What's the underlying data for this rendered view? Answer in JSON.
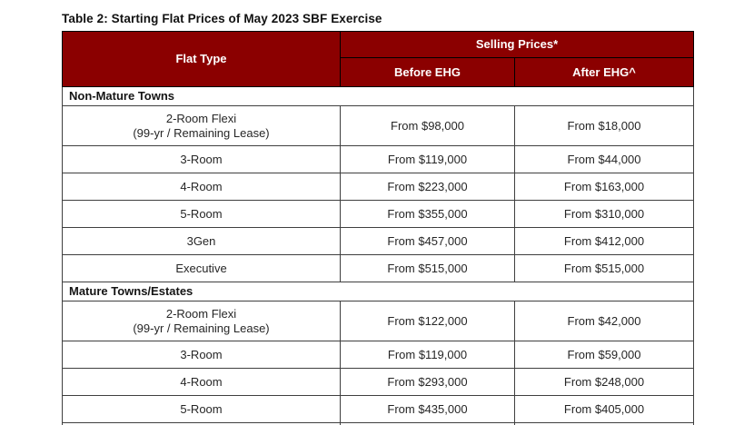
{
  "page_title": "Table 2: Starting Flat Prices of May 2023 SBF Exercise",
  "colors": {
    "header_bg": "#8B0000",
    "header_text": "#FFFFFF",
    "border": "#3F3F3F",
    "body_text": "#262626"
  },
  "table": {
    "header": {
      "flat_type": "Flat Type",
      "selling_prices": "Selling Prices*",
      "before_ehg": "Before EHG",
      "after_ehg": "After EHG^"
    },
    "sections": [
      {
        "name": "Non-Mature Towns",
        "rows": [
          {
            "flat_type": "2-Room Flexi",
            "flat_type_sub": "(99-yr / Remaining Lease)",
            "before": "From $98,000",
            "after": "From $18,000"
          },
          {
            "flat_type": "3-Room",
            "before": "From $119,000",
            "after": "From $44,000"
          },
          {
            "flat_type": "4-Room",
            "before": "From $223,000",
            "after": "From $163,000"
          },
          {
            "flat_type": "5-Room",
            "before": "From $355,000",
            "after": "From $310,000"
          },
          {
            "flat_type": "3Gen",
            "before": "From $457,000",
            "after": "From $412,000"
          },
          {
            "flat_type": "Executive",
            "before": "From $515,000",
            "after": "From $515,000"
          }
        ]
      },
      {
        "name": "Mature Towns/Estates",
        "rows": [
          {
            "flat_type": "2-Room Flexi",
            "flat_type_sub": "(99-yr / Remaining Lease)",
            "before": "From $122,000",
            "after": "From $42,000"
          },
          {
            "flat_type": "3-Room",
            "before": "From $119,000",
            "after": "From $59,000"
          },
          {
            "flat_type": "4-Room",
            "before": "From $293,000",
            "after": "From $248,000"
          },
          {
            "flat_type": "5-Room",
            "before": "From $435,000",
            "after": "From $405,000"
          }
        ]
      }
    ]
  }
}
